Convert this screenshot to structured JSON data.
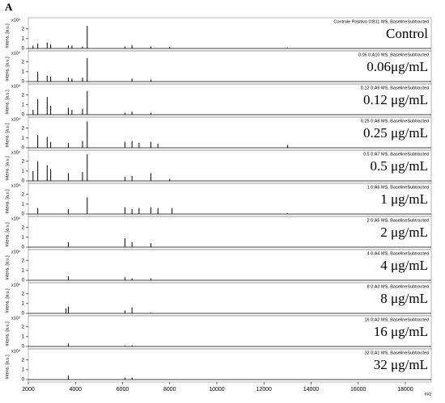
{
  "panel_label": "A",
  "chart_data": [
    {
      "type": "stem",
      "title": "Controle Positivo 0:B11 MS, BaselineSubtracted",
      "label": "Control",
      "ylabel": "Intens. [a.u.]",
      "yunit": "x10⁴",
      "xlim": [
        2000,
        19100
      ],
      "ylim": [
        0,
        2.8
      ],
      "yticks": [
        0,
        1,
        2
      ],
      "color": "#000000",
      "x": [
        2200,
        2400,
        2800,
        2950,
        3700,
        3850,
        4300,
        4500,
        6100,
        6400,
        7200,
        8000,
        13000
      ],
      "values": [
        0.3,
        0.5,
        0.6,
        0.4,
        0.3,
        0.3,
        0.2,
        2.3,
        0.2,
        0.35,
        0.2,
        0.15,
        0.1
      ]
    },
    {
      "type": "stem",
      "title": "0.06 0:A10 MS, BaselineSubtracted",
      "label": "0.06μg/mL",
      "ylabel": "Intens. [a.u.]",
      "yunit": "x10⁴",
      "xlim": [
        2000,
        19100
      ],
      "ylim": [
        0,
        2.8
      ],
      "yticks": [
        0,
        1,
        2
      ],
      "color": "#000000",
      "x": [
        2400,
        2800,
        2950,
        3700,
        3850,
        4300,
        4500,
        6400,
        7200
      ],
      "values": [
        1.0,
        0.6,
        0.5,
        0.4,
        0.3,
        0.4,
        2.4,
        0.3,
        0.2
      ]
    },
    {
      "type": "stem",
      "title": "0.12 0:A9 MS, BaselineSubtracted",
      "label": "0.12 μg/mL",
      "ylabel": "Intens. [a.u.]",
      "yunit": "x10⁴",
      "xlim": [
        2000,
        19100
      ],
      "ylim": [
        0,
        2.8
      ],
      "yticks": [
        0,
        1,
        2
      ],
      "color": "#000000",
      "x": [
        2200,
        2400,
        2800,
        2950,
        3700,
        3850,
        4300,
        4500,
        6100,
        6400,
        7200
      ],
      "values": [
        0.5,
        1.6,
        1.8,
        0.9,
        0.7,
        0.5,
        0.6,
        2.4,
        0.2,
        0.3,
        0.2
      ]
    },
    {
      "type": "stem",
      "title": "0.25 0:A8 MS, BaselineSubtracted",
      "label": "0.25 μg/mL",
      "ylabel": "Intens. [a.u.]",
      "yunit": "x10⁴",
      "xlim": [
        2000,
        19100
      ],
      "ylim": [
        0,
        2.8
      ],
      "yticks": [
        0,
        1,
        2
      ],
      "color": "#000000",
      "x": [
        2400,
        2800,
        2950,
        3700,
        4300,
        4500,
        6100,
        6400,
        6700,
        7200,
        7500,
        13000
      ],
      "values": [
        1.3,
        1.1,
        0.6,
        0.5,
        0.7,
        2.7,
        0.6,
        0.7,
        0.5,
        0.6,
        0.4,
        0.3
      ]
    },
    {
      "type": "stem",
      "title": "0.5 0:A7 MS, BaselineSubtracted",
      "label": "0.5 μg/mL",
      "ylabel": "Intens. [a.u.]",
      "yunit": "x10⁴",
      "xlim": [
        2000,
        19100
      ],
      "ylim": [
        0,
        2.8
      ],
      "yticks": [
        0,
        1,
        2
      ],
      "color": "#000000",
      "x": [
        2200,
        2400,
        2800,
        2950,
        3700,
        4300,
        4500,
        6100,
        6400,
        7200,
        8000
      ],
      "values": [
        1.0,
        2.0,
        1.6,
        1.2,
        0.8,
        0.9,
        2.7,
        0.4,
        0.5,
        0.8,
        0.2
      ]
    },
    {
      "type": "stem",
      "title": "1 0:A6 MS, BaselineSubtracted",
      "label": "1 μg/mL",
      "ylabel": "Intens. [a.u.]",
      "yunit": "x10⁴",
      "xlim": [
        2000,
        19100
      ],
      "ylim": [
        0,
        2.8
      ],
      "yticks": [
        0,
        1,
        2
      ],
      "color": "#000000",
      "x": [
        2400,
        3700,
        4500,
        6100,
        6400,
        6700,
        7200,
        7500,
        8100,
        13000
      ],
      "values": [
        0.6,
        0.5,
        1.7,
        0.7,
        0.5,
        0.6,
        0.7,
        0.6,
        0.6,
        0.1
      ]
    },
    {
      "type": "stem",
      "title": "2 0:A5 MS, BaselineSubtracted",
      "label": "2 μg/mL",
      "ylabel": "Intens. [a.u.]",
      "yunit": "x10⁴",
      "xlim": [
        2000,
        19100
      ],
      "ylim": [
        0,
        2.8
      ],
      "yticks": [
        0,
        1,
        2
      ],
      "color": "#000000",
      "x": [
        3700,
        6100,
        6400,
        7200
      ],
      "values": [
        0.5,
        0.9,
        0.5,
        0.4
      ]
    },
    {
      "type": "stem",
      "title": "4 0:A4 MS, BaselineSubtracted",
      "label": "4 μg/mL",
      "ylabel": "Intens. [a.u.]",
      "yunit": "x10⁴",
      "xlim": [
        2000,
        19100
      ],
      "ylim": [
        0,
        2.8
      ],
      "yticks": [
        0,
        1,
        2
      ],
      "color": "#000000",
      "x": [
        3700,
        6100,
        6400,
        7200
      ],
      "values": [
        0.4,
        0.3,
        0.2,
        0.2
      ]
    },
    {
      "type": "stem",
      "title": "8 0:A3 MS, BaselineSubtracted",
      "label": "8 μg/mL",
      "ylabel": "Intens. [a.u.]",
      "yunit": "x10⁴",
      "xlim": [
        2000,
        19100
      ],
      "ylim": [
        0,
        2.8
      ],
      "yticks": [
        0,
        1,
        2
      ],
      "color": "#000000",
      "x": [
        3600,
        3700,
        6100,
        6400,
        7200
      ],
      "values": [
        0.5,
        0.7,
        0.3,
        0.6,
        0.1
      ]
    },
    {
      "type": "stem",
      "title": "16 0:A2 MS, BaselineSubtracted",
      "label": "16 μg/mL",
      "ylabel": "Intens. [a.u.]",
      "yunit": "x10⁴",
      "xlim": [
        2000,
        19100
      ],
      "ylim": [
        0,
        2.8
      ],
      "yticks": [
        0,
        1,
        2
      ],
      "color": "#000000",
      "x": [
        3700,
        6100,
        6400
      ],
      "values": [
        0.3,
        0.1,
        0.1
      ]
    },
    {
      "type": "stem",
      "title": "32 0:A1 MS, BaselineSubtracted",
      "label": "32 μg/mL",
      "ylabel": "Intens. [a.u.]",
      "yunit": "x10⁴",
      "xlim": [
        2000,
        19100
      ],
      "ylim": [
        0,
        2.8
      ],
      "yticks": [
        0,
        1,
        2
      ],
      "color": "#000000",
      "x": [
        3700,
        6100,
        6400
      ],
      "values": [
        0.4,
        0.2,
        0.2
      ],
      "xticks": [
        2000,
        4000,
        6000,
        8000,
        10000,
        12000,
        14000,
        16000,
        18000
      ],
      "xlabel": "m/z"
    }
  ]
}
